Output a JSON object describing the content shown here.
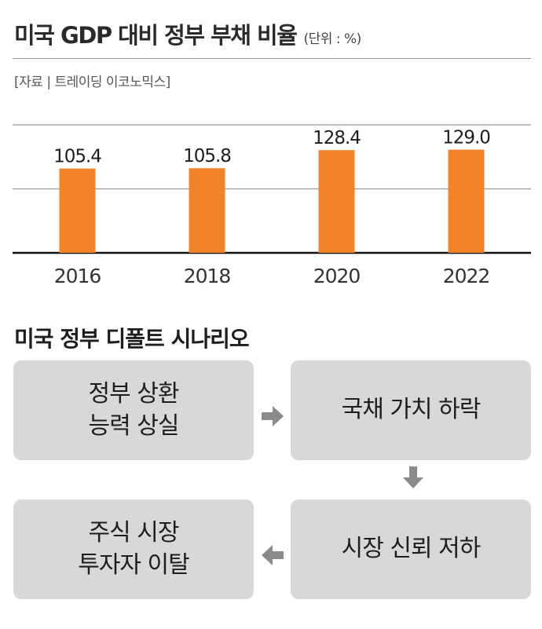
{
  "header": {
    "title": "미국 GDP 대비 정부 부채 비율",
    "unit": "(단위 : %)",
    "source": "[자료 | 트레이딩 이코노믹스]"
  },
  "chart_data": {
    "type": "bar",
    "title": "미국 GDP 대비 정부 부채 비율",
    "unit": "%",
    "categories": [
      "2016",
      "2018",
      "2020",
      "2022"
    ],
    "values": [
      105.4,
      105.8,
      128.4,
      129.0
    ],
    "value_labels": [
      "105.4",
      "105.8",
      "128.4",
      "129.0"
    ],
    "ylim": [
      0,
      160
    ],
    "gridlines": [
      80,
      160
    ],
    "xlabel": "",
    "ylabel": "",
    "bar_color": "#f1832a",
    "legend": "none"
  },
  "scenario": {
    "title": "미국 정부 디폴트 시나리오",
    "steps": [
      "정부 상환\n능력 상실",
      "국채 가치 하락",
      "시장 신뢰 저하",
      "주식 시장\n투자자 이탈"
    ],
    "arrow_color": "#8a8a8a"
  }
}
